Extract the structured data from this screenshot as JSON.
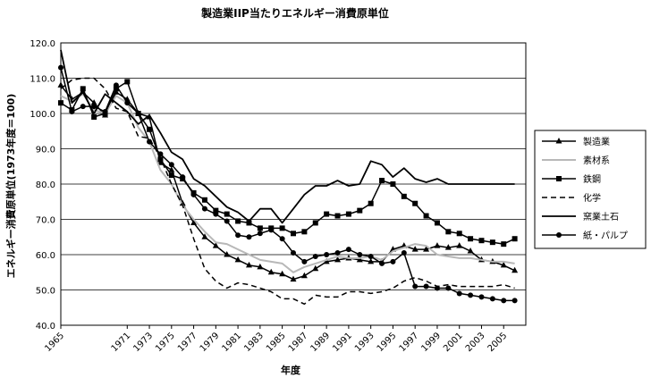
{
  "chart_data": {
    "type": "line",
    "title": "製造業IIP当たりエネルギー消費原単位",
    "xlabel": "年度",
    "ylabel": "エネルギー消費原単位(1973年度＝100)",
    "ylim": [
      40.0,
      120.0
    ],
    "y_ticks": [
      "40.0",
      "50.0",
      "60.0",
      "70.0",
      "80.0",
      "90.0",
      "100.0",
      "110.0",
      "120.0"
    ],
    "x_range": [
      1965,
      2007
    ],
    "x_ticks": [
      "1965",
      "1971",
      "1973",
      "1975",
      "1977",
      "1979",
      "1981",
      "1983",
      "1985",
      "1987",
      "1989",
      "1991",
      "1993",
      "1995",
      "1997",
      "1999",
      "2001",
      "2003",
      "2005"
    ],
    "grid": "horizontal",
    "legend_position": "right",
    "series": [
      {
        "name": "製造業",
        "color": "#000000",
        "marker": "triangle",
        "dash": "",
        "width": 1.5,
        "x": [
          1965,
          1966,
          1967,
          1968,
          1969,
          1970,
          1971,
          1972,
          1973,
          1974,
          1975,
          1976,
          1977,
          1978,
          1979,
          1980,
          1981,
          1982,
          1983,
          1984,
          1985,
          1986,
          1987,
          1988,
          1989,
          1990,
          1991,
          1992,
          1993,
          1994,
          1995,
          1996,
          1997,
          1998,
          1999,
          2000,
          2001,
          2002,
          2003,
          2004,
          2005,
          2006
        ],
        "y": [
          108.0,
          104.0,
          106.0,
          103.0,
          99.5,
          106.0,
          104.0,
          100.0,
          99.0,
          86.0,
          84.0,
          74.5,
          69.0,
          65.0,
          62.5,
          60.0,
          58.5,
          57.0,
          56.5,
          55.0,
          54.5,
          53.0,
          54.0,
          56.0,
          58.0,
          58.5,
          59.0,
          58.5,
          58.0,
          58.0,
          61.5,
          62.5,
          61.5,
          61.5,
          62.5,
          62.0,
          62.5,
          61.0,
          58.5,
          58.0,
          57.0,
          55.5
        ]
      },
      {
        "name": "素材系",
        "color": "#b8b8b8",
        "marker": "none",
        "dash": "",
        "width": 2,
        "x": [
          1965,
          1966,
          1967,
          1968,
          1969,
          1970,
          1971,
          1972,
          1973,
          1974,
          1975,
          1976,
          1977,
          1978,
          1979,
          1980,
          1981,
          1982,
          1983,
          1984,
          1985,
          1986,
          1987,
          1988,
          1989,
          1990,
          1991,
          1992,
          1993,
          1994,
          1995,
          1996,
          1997,
          1998,
          1999,
          2000,
          2001,
          2002,
          2003,
          2004,
          2005,
          2006
        ],
        "y": [
          105.0,
          103.5,
          105.5,
          101.0,
          100.0,
          105.0,
          103.0,
          96.0,
          92.0,
          84.0,
          80.0,
          74.0,
          70.0,
          66.5,
          63.5,
          63.0,
          61.5,
          60.0,
          58.5,
          58.0,
          57.5,
          55.0,
          56.5,
          57.5,
          58.5,
          59.5,
          59.0,
          59.0,
          59.5,
          58.5,
          61.0,
          62.0,
          63.0,
          62.5,
          60.0,
          59.5,
          59.0,
          59.0,
          58.5,
          58.0,
          58.0,
          57.5
        ]
      },
      {
        "name": "鉄鋼",
        "color": "#000000",
        "marker": "square",
        "dash": "",
        "width": 1.5,
        "x": [
          1965,
          1966,
          1967,
          1968,
          1969,
          1970,
          1971,
          1972,
          1973,
          1974,
          1975,
          1976,
          1977,
          1978,
          1979,
          1980,
          1981,
          1982,
          1983,
          1984,
          1985,
          1986,
          1987,
          1988,
          1989,
          1990,
          1991,
          1992,
          1993,
          1994,
          1995,
          1996,
          1997,
          1998,
          1999,
          2000,
          2001,
          2002,
          2003,
          2004,
          2005,
          2006
        ],
        "y": [
          103.0,
          101.0,
          107.0,
          99.0,
          100.0,
          107.0,
          109.0,
          100.0,
          95.5,
          87.0,
          82.5,
          81.5,
          77.5,
          75.5,
          72.5,
          71.5,
          69.5,
          69.0,
          67.5,
          67.5,
          67.5,
          66.0,
          66.5,
          69.0,
          71.5,
          71.0,
          71.5,
          72.5,
          74.5,
          81.0,
          80.0,
          76.5,
          74.5,
          71.0,
          69.0,
          66.5,
          66.0,
          64.5,
          64.0,
          63.5,
          63.0,
          64.5
        ]
      },
      {
        "name": "化学",
        "color": "#000000",
        "marker": "none",
        "dash": "6,4",
        "width": 1.5,
        "x": [
          1965,
          1966,
          1967,
          1968,
          1969,
          1970,
          1971,
          1972,
          1973,
          1974,
          1975,
          1976,
          1977,
          1978,
          1979,
          1980,
          1981,
          1982,
          1983,
          1984,
          1985,
          1986,
          1987,
          1988,
          1989,
          1990,
          1991,
          1992,
          1993,
          1994,
          1995,
          1996,
          1997,
          1998,
          1999,
          2000,
          2001,
          2002,
          2003,
          2004,
          2005,
          2006
        ],
        "y": [
          107.0,
          109.5,
          110.0,
          110.0,
          107.0,
          101.5,
          100.5,
          93.5,
          93.0,
          87.5,
          80.0,
          74.0,
          64.5,
          56.0,
          52.5,
          50.5,
          52.0,
          51.5,
          50.5,
          49.5,
          47.5,
          47.5,
          46.0,
          48.5,
          48.0,
          48.0,
          49.5,
          49.5,
          49.0,
          49.5,
          50.5,
          52.5,
          53.5,
          52.5,
          51.0,
          51.5,
          51.0,
          51.0,
          51.0,
          51.0,
          51.5,
          50.5
        ]
      },
      {
        "name": "窯業土石",
        "color": "#000000",
        "marker": "none",
        "dash": "",
        "width": 1.8,
        "x": [
          1965,
          1966,
          1967,
          1968,
          1969,
          1970,
          1971,
          1972,
          1973,
          1974,
          1975,
          1976,
          1977,
          1978,
          1979,
          1980,
          1981,
          1982,
          1983,
          1984,
          1985,
          1986,
          1987,
          1988,
          1989,
          1990,
          1991,
          1992,
          1993,
          1994,
          1995,
          1996,
          1997,
          1998,
          1999,
          2000,
          2001,
          2002,
          2003,
          2004,
          2005,
          2006
        ],
        "y": [
          118.0,
          103.0,
          106.0,
          100.0,
          105.5,
          103.0,
          100.5,
          97.0,
          99.5,
          94.5,
          89.0,
          87.0,
          81.5,
          79.5,
          76.5,
          73.5,
          72.0,
          69.5,
          73.0,
          73.0,
          69.0,
          73.0,
          77.0,
          79.5,
          79.5,
          81.0,
          79.5,
          80.0,
          86.5,
          85.5,
          82.0,
          84.5,
          81.5,
          80.5,
          81.5,
          80.0,
          80.0,
          80.0,
          80.0,
          80.0,
          80.0,
          80.0
        ]
      },
      {
        "name": "紙・パルプ",
        "color": "#000000",
        "marker": "diamond",
        "dash": "",
        "width": 1.5,
        "x": [
          1965,
          1966,
          1967,
          1968,
          1969,
          1970,
          1971,
          1972,
          1973,
          1974,
          1975,
          1976,
          1977,
          1978,
          1979,
          1980,
          1981,
          1982,
          1983,
          1984,
          1985,
          1986,
          1987,
          1988,
          1989,
          1990,
          1991,
          1992,
          1993,
          1994,
          1995,
          1996,
          1997,
          1998,
          1999,
          2000,
          2001,
          2002,
          2003,
          2004,
          2005,
          2006
        ],
        "y": [
          113.0,
          100.5,
          102.0,
          102.0,
          100.5,
          108.0,
          103.0,
          100.0,
          92.0,
          88.5,
          85.5,
          82.0,
          77.0,
          73.0,
          71.5,
          69.5,
          65.5,
          65.0,
          66.0,
          67.0,
          64.5,
          60.5,
          58.0,
          59.5,
          60.0,
          60.5,
          61.5,
          60.0,
          59.5,
          57.5,
          58.0,
          60.5,
          51.0,
          51.0,
          50.5,
          50.5,
          49.0,
          48.5,
          48.0,
          47.5,
          47.0,
          47.0
        ]
      }
    ]
  }
}
